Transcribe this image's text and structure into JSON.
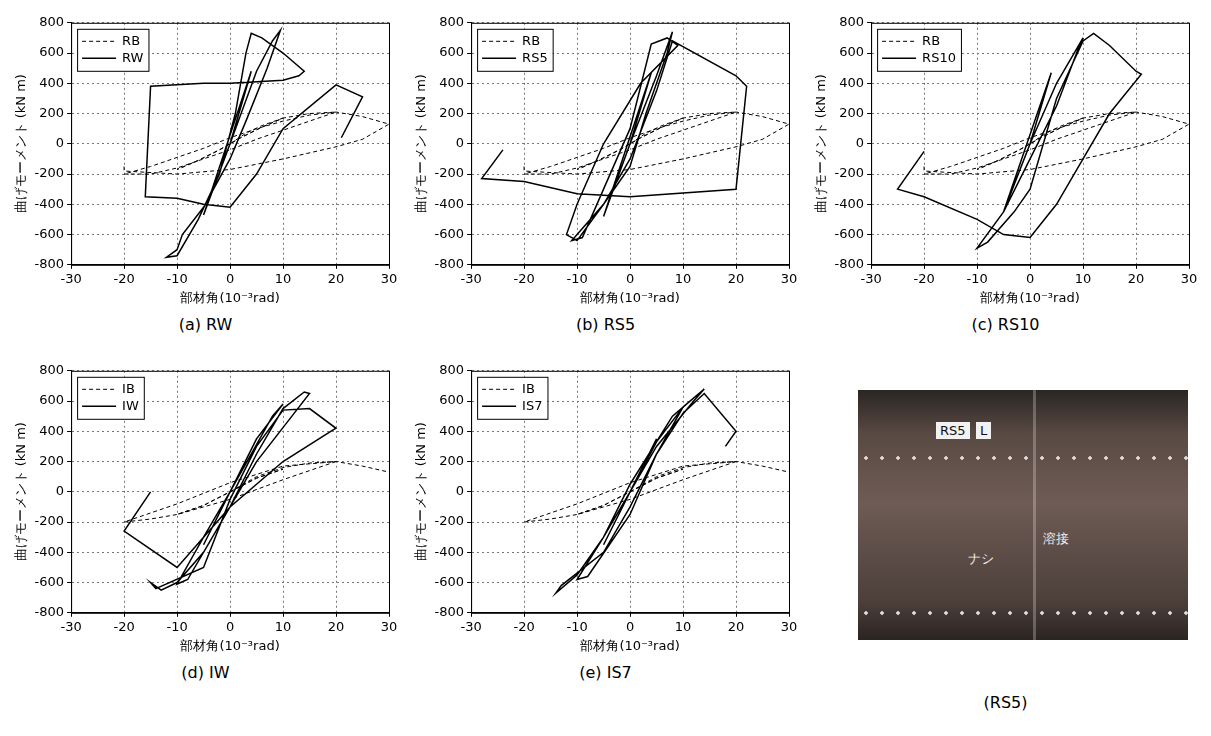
{
  "chart_data": [
    {
      "type": "line",
      "caption": "(a) RW",
      "x_label": "部材角(10⁻³rad)",
      "y_label": "曲げモーメント (kN m)",
      "xlim": [
        -30,
        30
      ],
      "xticks": [
        -30,
        -20,
        -10,
        0,
        10,
        20,
        30
      ],
      "ylim": [
        -800,
        800
      ],
      "yticks": [
        -800,
        -600,
        -400,
        -200,
        0,
        200,
        400,
        600,
        800
      ],
      "grid": true,
      "legend": "upper left",
      "series": [
        {
          "name": "RB",
          "color": "#000000",
          "line_style": "dashed",
          "x": [
            0,
            3,
            6,
            10,
            6,
            2,
            -2,
            -6,
            -10,
            -6,
            -2,
            2,
            6,
            10,
            15,
            20,
            15,
            10,
            5,
            0,
            -5,
            -10,
            -15,
            -20,
            -15,
            -10,
            -5,
            0,
            5,
            10,
            15,
            20,
            25,
            30,
            25,
            20,
            10,
            0,
            -10,
            -20,
            -20
          ],
          "values": [
            0,
            70,
            120,
            170,
            110,
            40,
            -40,
            -110,
            -170,
            -110,
            -40,
            40,
            110,
            170,
            200,
            210,
            150,
            90,
            30,
            -40,
            -100,
            -160,
            -200,
            -200,
            -150,
            -90,
            -30,
            40,
            100,
            150,
            190,
            210,
            180,
            130,
            30,
            -20,
            -100,
            -170,
            -200,
            -180,
            -150
          ]
        },
        {
          "name": "RW",
          "color": "#000000",
          "line_style": "solid",
          "x": [
            0,
            4,
            0,
            -5,
            0,
            4,
            -5,
            0,
            5,
            8,
            9.5,
            7,
            3,
            0,
            -5,
            -9,
            -10,
            -12,
            -10,
            -6,
            -2,
            1,
            3,
            4,
            6,
            10,
            14,
            13,
            10,
            0,
            -5,
            -15,
            -16,
            -10,
            -5,
            0,
            5,
            10,
            20,
            25,
            21
          ],
          "values": [
            0,
            480,
            0,
            -470,
            0,
            480,
            -470,
            0,
            480,
            680,
            750,
            500,
            150,
            -100,
            -420,
            -600,
            -700,
            -750,
            -740,
            -500,
            -200,
            200,
            600,
            730,
            700,
            600,
            480,
            450,
            420,
            400,
            400,
            380,
            -350,
            -360,
            -400,
            -420,
            -200,
            100,
            390,
            310,
            40
          ]
        }
      ]
    },
    {
      "type": "line",
      "caption": "(b) RS5",
      "x_label": "部材角(10⁻³rad)",
      "y_label": "曲げモーメント (kN m)",
      "xlim": [
        -30,
        30
      ],
      "xticks": [
        -30,
        -20,
        -10,
        0,
        10,
        20,
        30
      ],
      "ylim": [
        -800,
        800
      ],
      "yticks": [
        -800,
        -600,
        -400,
        -200,
        0,
        200,
        400,
        600,
        800
      ],
      "grid": true,
      "legend": "upper left",
      "series": [
        {
          "name": "RB",
          "color": "#000000",
          "line_style": "dashed",
          "x": [
            0,
            3,
            6,
            10,
            6,
            2,
            -2,
            -6,
            -10,
            -6,
            -2,
            2,
            6,
            10,
            15,
            20,
            15,
            10,
            5,
            0,
            -5,
            -10,
            -15,
            -20,
            -15,
            -10,
            -5,
            0,
            5,
            10,
            15,
            20,
            25,
            30,
            25,
            20,
            10,
            0,
            -10,
            -20,
            -20
          ],
          "values": [
            0,
            70,
            120,
            170,
            110,
            40,
            -40,
            -110,
            -170,
            -110,
            -40,
            40,
            110,
            170,
            200,
            210,
            150,
            90,
            30,
            -40,
            -100,
            -160,
            -200,
            -200,
            -150,
            -90,
            -30,
            40,
            100,
            150,
            190,
            210,
            180,
            130,
            30,
            -20,
            -100,
            -170,
            -200,
            -180,
            -150
          ]
        },
        {
          "name": "RS5",
          "color": "#000000",
          "line_style": "solid",
          "x": [
            0,
            4,
            -5,
            4,
            -5,
            0,
            5,
            8,
            7,
            3,
            0,
            -5,
            -10,
            -11,
            -9,
            -5,
            0,
            4,
            7,
            9,
            2,
            -5,
            -10,
            -12,
            -10,
            -5,
            0,
            5,
            8,
            20,
            22,
            20,
            0,
            -10,
            -20,
            -28,
            -24
          ],
          "values": [
            0,
            470,
            -480,
            470,
            -480,
            0,
            450,
            740,
            600,
            200,
            -150,
            -400,
            -600,
            -640,
            -620,
            -300,
            100,
            660,
            700,
            650,
            400,
            0,
            -400,
            -600,
            -640,
            -400,
            -100,
            350,
            680,
            450,
            380,
            -300,
            -350,
            -330,
            -250,
            -230,
            -40
          ]
        }
      ]
    },
    {
      "type": "line",
      "caption": "(c) RS10",
      "x_label": "部材角(10⁻³rad)",
      "y_label": "曲げモーメント (kN m)",
      "xlim": [
        -30,
        30
      ],
      "xticks": [
        -30,
        -20,
        -10,
        0,
        10,
        20,
        30
      ],
      "ylim": [
        -800,
        800
      ],
      "yticks": [
        -800,
        -600,
        -400,
        -200,
        0,
        200,
        400,
        600,
        800
      ],
      "grid": true,
      "legend": "upper left",
      "series": [
        {
          "name": "RB",
          "color": "#000000",
          "line_style": "dashed",
          "x": [
            0,
            3,
            6,
            10,
            6,
            2,
            -2,
            -6,
            -10,
            -6,
            -2,
            2,
            6,
            10,
            15,
            20,
            15,
            10,
            5,
            0,
            -5,
            -10,
            -15,
            -20,
            -15,
            -10,
            -5,
            0,
            5,
            10,
            15,
            20,
            25,
            30,
            25,
            20,
            10,
            0,
            -10,
            -20,
            -20
          ],
          "values": [
            0,
            70,
            120,
            170,
            110,
            40,
            -40,
            -110,
            -170,
            -110,
            -40,
            40,
            110,
            170,
            200,
            210,
            150,
            90,
            30,
            -40,
            -100,
            -160,
            -200,
            -200,
            -150,
            -90,
            -30,
            40,
            100,
            150,
            190,
            210,
            180,
            130,
            30,
            -20,
            -100,
            -170,
            -200,
            -180,
            -150
          ]
        },
        {
          "name": "RS10",
          "color": "#000000",
          "line_style": "solid",
          "x": [
            0,
            4,
            -5,
            4,
            -5,
            0,
            5,
            10,
            9,
            5,
            0,
            -5,
            -10,
            -8,
            -3,
            0,
            5,
            10,
            12,
            15,
            20,
            21,
            15,
            10,
            5,
            0,
            -5,
            -10,
            -20,
            -25,
            -20
          ],
          "values": [
            0,
            470,
            -450,
            470,
            -450,
            0,
            400,
            700,
            620,
            250,
            -100,
            -450,
            -690,
            -650,
            -450,
            -300,
            300,
            680,
            730,
            650,
            480,
            460,
            200,
            -100,
            -400,
            -620,
            -600,
            -500,
            -350,
            -300,
            -50
          ]
        }
      ]
    },
    {
      "type": "line",
      "caption": "(d) IW",
      "x_label": "部材角(10⁻³rad)",
      "y_label": "曲げモーメント (kN m)",
      "xlim": [
        -30,
        30
      ],
      "xticks": [
        -30,
        -20,
        -10,
        0,
        10,
        20,
        30
      ],
      "ylim": [
        -800,
        800
      ],
      "yticks": [
        -800,
        -600,
        -400,
        -200,
        0,
        200,
        400,
        600,
        800
      ],
      "grid": true,
      "legend": "upper left",
      "series": [
        {
          "name": "IB",
          "color": "#000000",
          "line_style": "dashed",
          "x": [
            0,
            5,
            10,
            5,
            0,
            -5,
            -10,
            -5,
            0,
            5,
            10,
            15,
            20,
            15,
            10,
            0,
            -10,
            -15,
            -20,
            -15,
            -10,
            0,
            10,
            20,
            25,
            30
          ],
          "values": [
            0,
            90,
            150,
            90,
            0,
            -90,
            -150,
            -90,
            0,
            100,
            160,
            190,
            200,
            140,
            80,
            -50,
            -150,
            -180,
            -200,
            -140,
            -80,
            60,
            170,
            200,
            170,
            130
          ]
        },
        {
          "name": "IW",
          "color": "#000000",
          "line_style": "solid",
          "x": [
            0,
            5,
            -5,
            5,
            -5,
            0,
            5,
            10,
            8,
            0,
            -5,
            -10,
            -8,
            0,
            5,
            10,
            14,
            15,
            13,
            5,
            0,
            -5,
            -10,
            -13,
            -15,
            -14,
            -5,
            0,
            5,
            10,
            15,
            20,
            19,
            10,
            0,
            -10,
            -20,
            -15
          ],
          "values": [
            0,
            350,
            -350,
            350,
            -350,
            0,
            350,
            580,
            500,
            0,
            -300,
            -610,
            -580,
            -100,
            250,
            550,
            660,
            650,
            560,
            200,
            -100,
            -400,
            -600,
            -650,
            -600,
            -640,
            -500,
            -50,
            300,
            540,
            550,
            420,
            400,
            200,
            -100,
            -500,
            -260,
            0
          ]
        }
      ]
    },
    {
      "type": "line",
      "caption": "(e) IS7",
      "x_label": "部材角(10⁻³rad)",
      "y_label": "曲げモーメント (kN m)",
      "xlim": [
        -30,
        30
      ],
      "xticks": [
        -30,
        -20,
        -10,
        0,
        10,
        20,
        30
      ],
      "ylim": [
        -800,
        800
      ],
      "yticks": [
        -800,
        -600,
        -400,
        -200,
        0,
        200,
        400,
        600,
        800
      ],
      "grid": true,
      "legend": "upper left",
      "series": [
        {
          "name": "IB",
          "color": "#000000",
          "line_style": "dashed",
          "x": [
            0,
            5,
            10,
            5,
            0,
            -5,
            -10,
            -5,
            0,
            5,
            10,
            15,
            20,
            15,
            10,
            0,
            -10,
            -15,
            -20,
            -15,
            -10,
            0,
            10,
            20,
            25,
            30
          ],
          "values": [
            0,
            90,
            150,
            90,
            0,
            -90,
            -150,
            -90,
            0,
            100,
            160,
            190,
            200,
            140,
            80,
            -50,
            -150,
            -180,
            -200,
            -140,
            -80,
            60,
            170,
            200,
            170,
            130
          ]
        },
        {
          "name": "IS7",
          "color": "#000000",
          "line_style": "solid",
          "x": [
            0,
            5,
            -5,
            5,
            -5,
            0,
            5,
            10,
            8,
            0,
            -5,
            -10,
            -8,
            0,
            5,
            10,
            14,
            12,
            5,
            0,
            -5,
            -10,
            -14,
            -13,
            -5,
            0,
            5,
            10,
            14,
            20,
            18
          ],
          "values": [
            0,
            350,
            -350,
            350,
            -350,
            0,
            330,
            560,
            500,
            50,
            -300,
            -580,
            -560,
            -150,
            250,
            560,
            680,
            600,
            300,
            0,
            -300,
            -550,
            -670,
            -620,
            -400,
            -100,
            250,
            520,
            650,
            400,
            300
          ]
        }
      ]
    }
  ],
  "photo": {
    "caption": "(RS5)",
    "tags": [
      "RS5",
      "L"
    ],
    "handwriting": [
      "ナシ",
      "溶接"
    ]
  }
}
